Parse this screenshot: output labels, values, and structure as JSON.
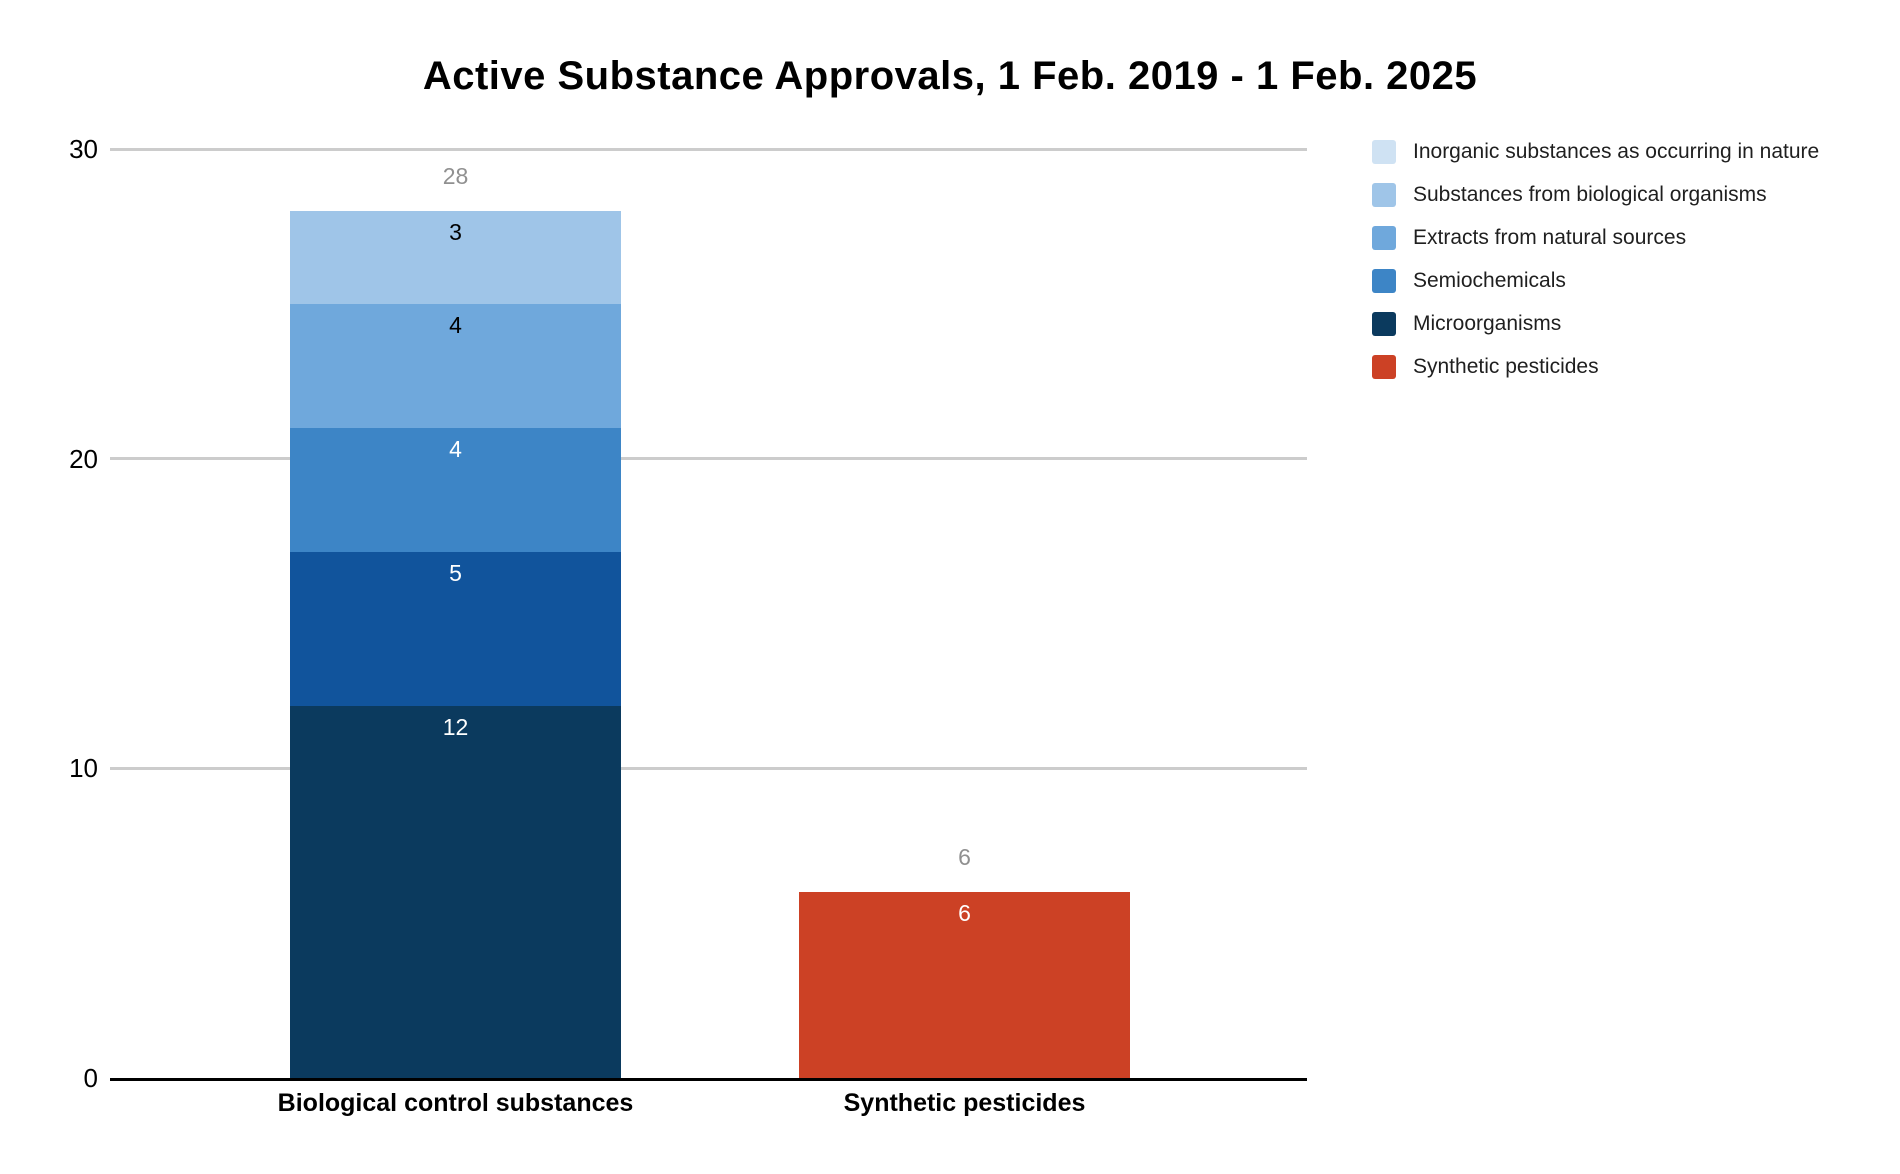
{
  "title": "Active Substance Approvals, 1 Feb. 2019 - 1 Feb. 2025",
  "colors": {
    "background": "#ffffff",
    "title_text": "#000000",
    "gridline": "#cccccc",
    "axis_baseline": "#000000",
    "axis_tick_text": "#000000",
    "category_label_text": "#000000",
    "total_label_text": "#909090",
    "legend_text": "#1f1f1f"
  },
  "chart_data": {
    "type": "bar",
    "stacked": true,
    "title": "Active Substance Approvals, 1 Feb. 2019 - 1 Feb. 2025",
    "categories": [
      "Biological control substances",
      "Synthetic pesticides"
    ],
    "series": [
      {
        "name": "Inorganic substances as occurring in nature",
        "legend_color": "#cfe2f3",
        "values": [
          3,
          0
        ]
      },
      {
        "name": "Substances from biological organisms",
        "legend_color": "#9fc5e8",
        "values": [
          4,
          0
        ]
      },
      {
        "name": "Extracts from natural sources",
        "legend_color": "#6fa8dc",
        "values": [
          4,
          0
        ]
      },
      {
        "name": "Semiochemicals",
        "legend_color": "#3d85c6",
        "values": [
          5,
          0
        ]
      },
      {
        "name": "Microorganisms",
        "legend_color": "#0b3a5e",
        "values": [
          12,
          0
        ]
      },
      {
        "name": "Synthetic pesticides",
        "legend_color": "#cc4125",
        "values": [
          0,
          6
        ]
      }
    ],
    "bar_totals": [
      28,
      6
    ],
    "y_axis": {
      "min": 0,
      "max": 30,
      "ticks": [
        0,
        10,
        20,
        30
      ],
      "grid": true
    },
    "x_axis_labels": [
      "Biological control substances",
      "Synthetic pesticides"
    ],
    "legend_position": "right",
    "bars": [
      {
        "category": "Biological control substances",
        "total_label": "28",
        "segments": [
          {
            "series": "Inorganic substances as occurring in nature",
            "value": 3,
            "label": "3",
            "color": "#9fc5e8",
            "label_color": "#000000"
          },
          {
            "series": "Substances from biological organisms",
            "value": 4,
            "label": "4",
            "color": "#6fa8dc",
            "label_color": "#000000"
          },
          {
            "series": "Extracts from natural sources",
            "value": 4,
            "label": "4",
            "color": "#3d85c6",
            "label_color": "#ffffff"
          },
          {
            "series": "Semiochemicals",
            "value": 5,
            "label": "5",
            "color": "#11549c",
            "label_color": "#ffffff"
          },
          {
            "series": "Microorganisms",
            "value": 12,
            "label": "12",
            "color": "#0b3a5e",
            "label_color": "#ffffff"
          }
        ]
      },
      {
        "category": "Synthetic pesticides",
        "total_label": "6",
        "segments": [
          {
            "series": "Synthetic pesticides",
            "value": 6,
            "label": "6",
            "color": "#cc4125",
            "label_color": "#ffffff"
          }
        ]
      }
    ]
  }
}
